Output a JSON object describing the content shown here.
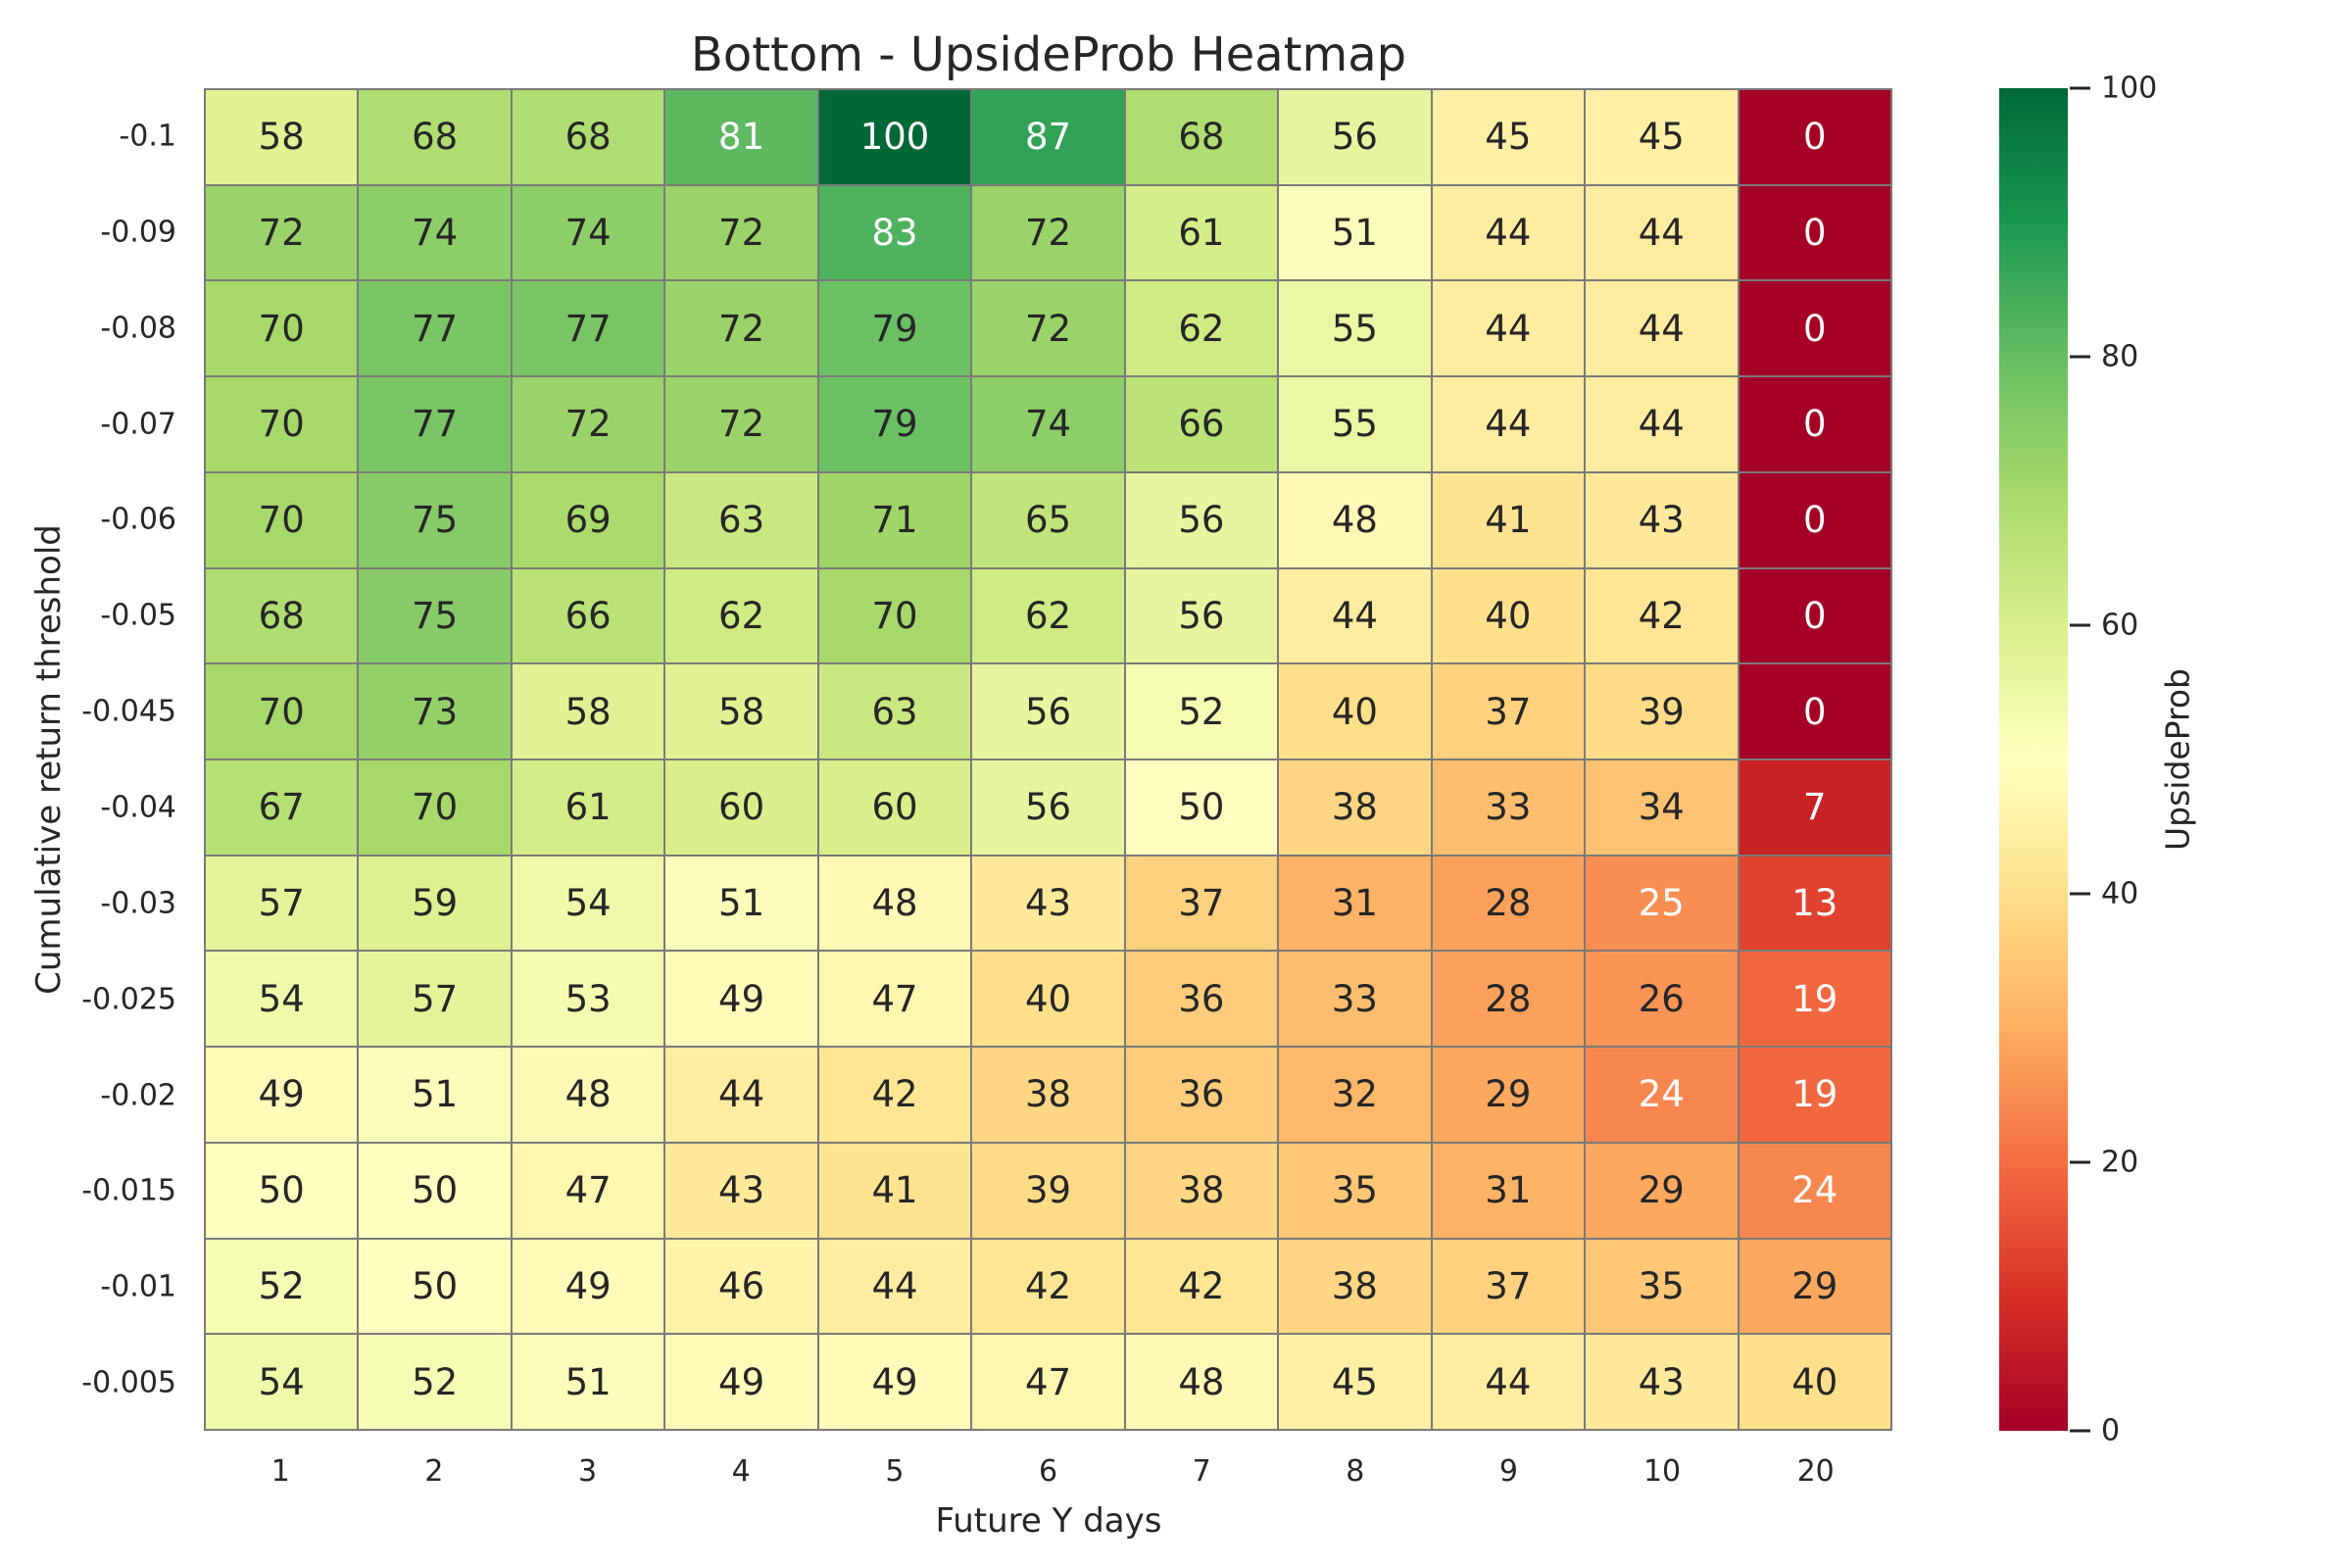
{
  "chart_data": {
    "type": "heatmap",
    "title": "Bottom - UpsideProb Heatmap",
    "xlabel": "Future Y days",
    "ylabel": "Cumulative return threshold",
    "x_categories": [
      "1",
      "2",
      "3",
      "4",
      "5",
      "6",
      "7",
      "8",
      "9",
      "10",
      "20"
    ],
    "y_categories": [
      "-0.1",
      "-0.09",
      "-0.08",
      "-0.07",
      "-0.06",
      "-0.05",
      "-0.045",
      "-0.04",
      "-0.03",
      "-0.025",
      "-0.02",
      "-0.015",
      "-0.01",
      "-0.005"
    ],
    "values": [
      [
        58,
        68,
        68,
        81,
        100,
        87,
        68,
        56,
        45,
        45,
        0
      ],
      [
        72,
        74,
        74,
        72,
        83,
        72,
        61,
        51,
        44,
        44,
        0
      ],
      [
        70,
        77,
        77,
        72,
        79,
        72,
        62,
        55,
        44,
        44,
        0
      ],
      [
        70,
        77,
        72,
        72,
        79,
        74,
        66,
        55,
        44,
        44,
        0
      ],
      [
        70,
        75,
        69,
        63,
        71,
        65,
        56,
        48,
        41,
        43,
        0
      ],
      [
        68,
        75,
        66,
        62,
        70,
        62,
        56,
        44,
        40,
        42,
        0
      ],
      [
        70,
        73,
        58,
        58,
        63,
        56,
        52,
        40,
        37,
        39,
        0
      ],
      [
        67,
        70,
        61,
        60,
        60,
        56,
        50,
        38,
        33,
        34,
        7
      ],
      [
        57,
        59,
        54,
        51,
        48,
        43,
        37,
        31,
        28,
        25,
        13
      ],
      [
        54,
        57,
        53,
        49,
        47,
        40,
        36,
        33,
        28,
        26,
        19
      ],
      [
        49,
        51,
        48,
        44,
        42,
        38,
        36,
        32,
        29,
        24,
        19
      ],
      [
        50,
        50,
        47,
        43,
        41,
        39,
        38,
        35,
        31,
        29,
        24
      ],
      [
        52,
        50,
        49,
        46,
        44,
        42,
        42,
        38,
        37,
        35,
        29
      ],
      [
        54,
        52,
        51,
        49,
        49,
        47,
        48,
        45,
        44,
        43,
        40
      ]
    ],
    "vmin": 0,
    "vmax": 100,
    "grid_on": true,
    "legend_position": "right-colorbar",
    "colormap": {
      "name": "RdYlGn",
      "stops": [
        "#a50026",
        "#d73027",
        "#f46d43",
        "#fdae61",
        "#fee08b",
        "#ffffbf",
        "#d9ef8b",
        "#a6d96a",
        "#66bd63",
        "#1a9850",
        "#006837"
      ]
    },
    "colorbar": {
      "label": "UpsideProb",
      "tick_values": [
        0,
        20,
        40,
        60,
        80,
        100
      ]
    },
    "colors": {
      "grid_line": "#7a7a7a",
      "text_dark": "#262626",
      "text_light": "#ffffff",
      "background": "#ffffff"
    }
  }
}
